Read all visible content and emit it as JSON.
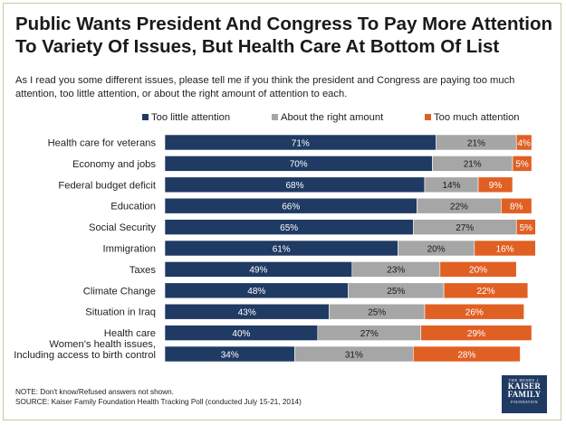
{
  "title": "Public Wants President And Congress To Pay More Attention To Variety Of Issues, But Health Care At Bottom Of List",
  "subtitle": "As I read you some different issues, please tell me if you think the president and Congress are paying too much attention, too little attention, or about the right amount of attention to each.",
  "footer": {
    "note": "NOTE: Don't know/Refused answers not shown.",
    "source": "SOURCE: Kaiser Family Foundation Health Tracking Poll (conducted July 15-21, 2014)"
  },
  "logo": {
    "line1": "THE HENRY J.",
    "line2": "KAISER",
    "line3": "FAMILY",
    "line4": "FOUNDATION"
  },
  "colors": {
    "too_little": "#1f3a63",
    "right_amount": "#a6a6a6",
    "too_much": "#e06024"
  },
  "chart_data": {
    "type": "bar",
    "orientation": "horizontal",
    "stacked": true,
    "categories": [
      "Health care for veterans",
      "Economy and jobs",
      "Federal budget deficit",
      "Education",
      "Social Security",
      "Immigration",
      "Taxes",
      "Climate Change",
      "Situation in Iraq",
      "Health care",
      "Women's health issues, Including access to birth control"
    ],
    "category_lines": [
      [
        "Health care for veterans"
      ],
      [
        "Economy and jobs"
      ],
      [
        "Federal budget deficit"
      ],
      [
        "Education"
      ],
      [
        "Social Security"
      ],
      [
        "Immigration"
      ],
      [
        "Taxes"
      ],
      [
        "Climate Change"
      ],
      [
        "Situation in Iraq"
      ],
      [
        "Health care"
      ],
      [
        "Women's health issues,",
        "Including access to birth control"
      ]
    ],
    "series": [
      {
        "name": "Too little attention",
        "values": [
          71,
          70,
          68,
          66,
          65,
          61,
          49,
          48,
          43,
          40,
          34
        ]
      },
      {
        "name": "About the right amount",
        "values": [
          21,
          21,
          14,
          22,
          27,
          20,
          23,
          25,
          25,
          27,
          31
        ]
      },
      {
        "name": "Too much attention",
        "values": [
          4,
          5,
          9,
          8,
          5,
          16,
          20,
          22,
          26,
          29,
          28
        ]
      }
    ],
    "value_suffix": "%",
    "legend": "top",
    "xlim": [
      0,
      100
    ]
  }
}
